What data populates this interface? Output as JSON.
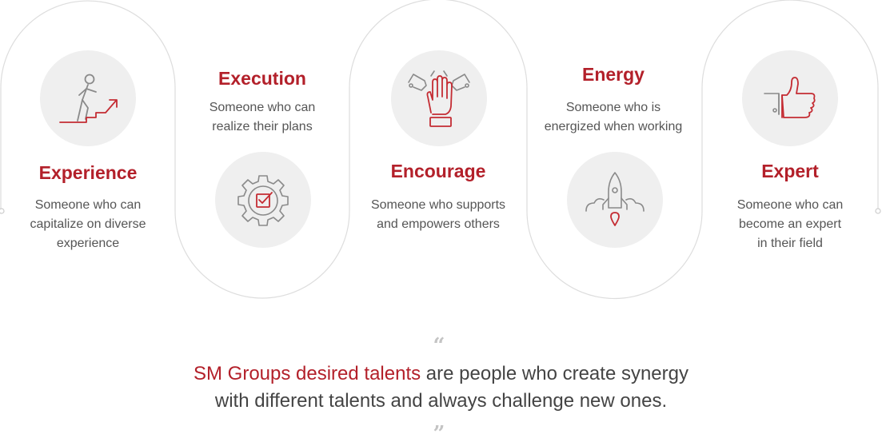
{
  "colors": {
    "accent": "#b3202a",
    "text": "#555555",
    "statement_text": "#444444",
    "outline": "#dddddd",
    "icon_bg": "#efefef",
    "icon_stroke": "#8a8a8a"
  },
  "talents": [
    {
      "title": "Experience",
      "description": [
        "Someone who can",
        "capitalize on diverse",
        "experience"
      ],
      "icon": "person-climbing-stairs-icon"
    },
    {
      "title": "Execution",
      "description": [
        "Someone who can",
        "realize their plans"
      ],
      "icon": "gear-checkbox-icon"
    },
    {
      "title": "Encourage",
      "description": [
        "Someone who supports",
        "and empowers others"
      ],
      "icon": "hands-high-five-icon"
    },
    {
      "title": "Energy",
      "description": [
        "Someone who is",
        "energized when working"
      ],
      "icon": "rocket-launch-icon"
    },
    {
      "title": "Expert",
      "description": [
        "Someone who can",
        "become an expert",
        "in their field"
      ],
      "icon": "thumbs-up-icon"
    }
  ],
  "quote": {
    "open_mark": "“",
    "close_mark": "”",
    "highlight": "SM Groups desired talents",
    "line1_rest": " are people who create synergy",
    "line2": "with different talents and always challenge new ones."
  }
}
